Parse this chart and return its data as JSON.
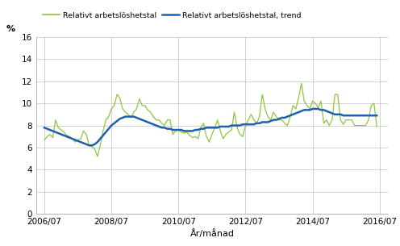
{
  "ylabel": "%",
  "xlabel": "År/månad",
  "ylim": [
    0,
    16
  ],
  "yticks": [
    0,
    2,
    4,
    6,
    8,
    10,
    12,
    14,
    16
  ],
  "xtick_labels": [
    "2006/07",
    "2008/07",
    "2010/07",
    "2012/07",
    "2014/07",
    "2016/07"
  ],
  "legend_label_green": "Relativt arbetslöshetstal",
  "legend_label_blue": "Relativt arbetslöshetstal, trend",
  "line_color_green": "#8dc63f",
  "line_color_blue": "#1f5fad",
  "background_color": "#ffffff",
  "grid_color": "#c0c0c0",
  "raw_values": [
    6.7,
    7.0,
    7.2,
    6.9,
    8.5,
    7.8,
    7.6,
    7.4,
    7.1,
    7.0,
    6.8,
    6.5,
    6.7,
    6.8,
    7.5,
    7.2,
    6.2,
    6.1,
    5.9,
    5.2,
    6.2,
    7.5,
    8.5,
    8.8,
    9.5,
    9.8,
    10.8,
    10.5,
    9.5,
    9.2,
    9.0,
    8.7,
    9.2,
    9.5,
    10.4,
    9.8,
    9.8,
    9.4,
    9.2,
    8.8,
    8.5,
    8.5,
    8.2,
    8.0,
    8.5,
    8.5,
    7.2,
    7.5,
    7.6,
    7.4,
    7.3,
    7.4,
    7.1,
    6.9,
    7.0,
    6.8,
    7.8,
    8.2,
    7.0,
    6.5,
    7.2,
    7.8,
    8.5,
    7.5,
    6.8,
    7.2,
    7.4,
    7.6,
    9.2,
    7.8,
    7.2,
    7.0,
    8.0,
    8.5,
    9.0,
    8.5,
    8.2,
    8.8,
    10.8,
    9.5,
    8.8,
    8.5,
    9.2,
    8.8,
    8.5,
    8.5,
    8.2,
    8.0,
    8.8,
    9.8,
    9.5,
    10.5,
    11.8,
    10.2,
    9.8,
    9.5,
    10.2,
    10.0,
    9.6,
    10.2,
    8.2,
    8.5,
    8.0,
    8.5,
    10.8,
    10.8,
    8.5,
    8.1,
    8.5,
    8.5,
    8.5,
    8.0,
    8.0,
    8.0,
    8.0,
    8.0,
    8.5,
    9.8,
    10.0,
    7.9
  ],
  "trend_values": [
    7.8,
    7.7,
    7.6,
    7.5,
    7.4,
    7.3,
    7.2,
    7.1,
    7.0,
    6.9,
    6.8,
    6.7,
    6.6,
    6.5,
    6.4,
    6.3,
    6.2,
    6.2,
    6.3,
    6.5,
    6.8,
    7.1,
    7.4,
    7.7,
    8.0,
    8.2,
    8.4,
    8.6,
    8.7,
    8.8,
    8.8,
    8.8,
    8.8,
    8.7,
    8.6,
    8.5,
    8.4,
    8.3,
    8.2,
    8.1,
    8.0,
    7.9,
    7.8,
    7.8,
    7.7,
    7.7,
    7.6,
    7.6,
    7.6,
    7.6,
    7.5,
    7.5,
    7.5,
    7.5,
    7.6,
    7.6,
    7.7,
    7.7,
    7.8,
    7.8,
    7.8,
    7.8,
    7.8,
    7.9,
    7.9,
    7.9,
    7.9,
    8.0,
    8.0,
    8.0,
    8.0,
    8.1,
    8.1,
    8.1,
    8.1,
    8.1,
    8.2,
    8.2,
    8.3,
    8.3,
    8.3,
    8.4,
    8.5,
    8.5,
    8.6,
    8.7,
    8.7,
    8.8,
    8.9,
    9.0,
    9.1,
    9.2,
    9.3,
    9.4,
    9.4,
    9.4,
    9.5,
    9.5,
    9.5,
    9.4,
    9.4,
    9.3,
    9.2,
    9.1,
    9.0,
    9.0,
    9.0,
    8.9,
    8.9,
    8.9,
    8.9,
    8.9,
    8.9,
    8.9,
    8.9,
    8.9,
    8.9,
    8.9,
    8.9,
    8.9
  ]
}
